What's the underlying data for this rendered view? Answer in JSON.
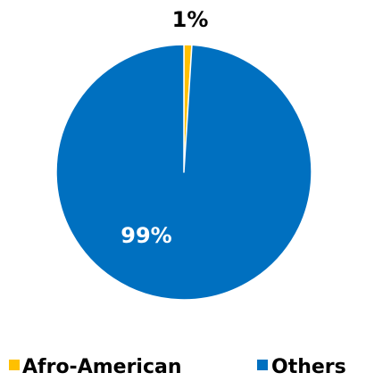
{
  "chart_data": {
    "type": "pie",
    "title": "",
    "start_angle_deg": 0,
    "direction": "clockwise",
    "slices": [
      {
        "label": "Afro-American",
        "value": 1,
        "display": "1%",
        "color": "#FFC000",
        "label_color": "#000000",
        "label_position": "outside"
      },
      {
        "label": "Others",
        "value": 99,
        "display": "99%",
        "color": "#0070C0",
        "label_color": "#FFFFFF",
        "label_position": "inside"
      }
    ],
    "legend": {
      "position": "bottom",
      "items": [
        "Afro-American",
        "Others"
      ]
    },
    "slice_border_color": "#FFFFFF"
  }
}
